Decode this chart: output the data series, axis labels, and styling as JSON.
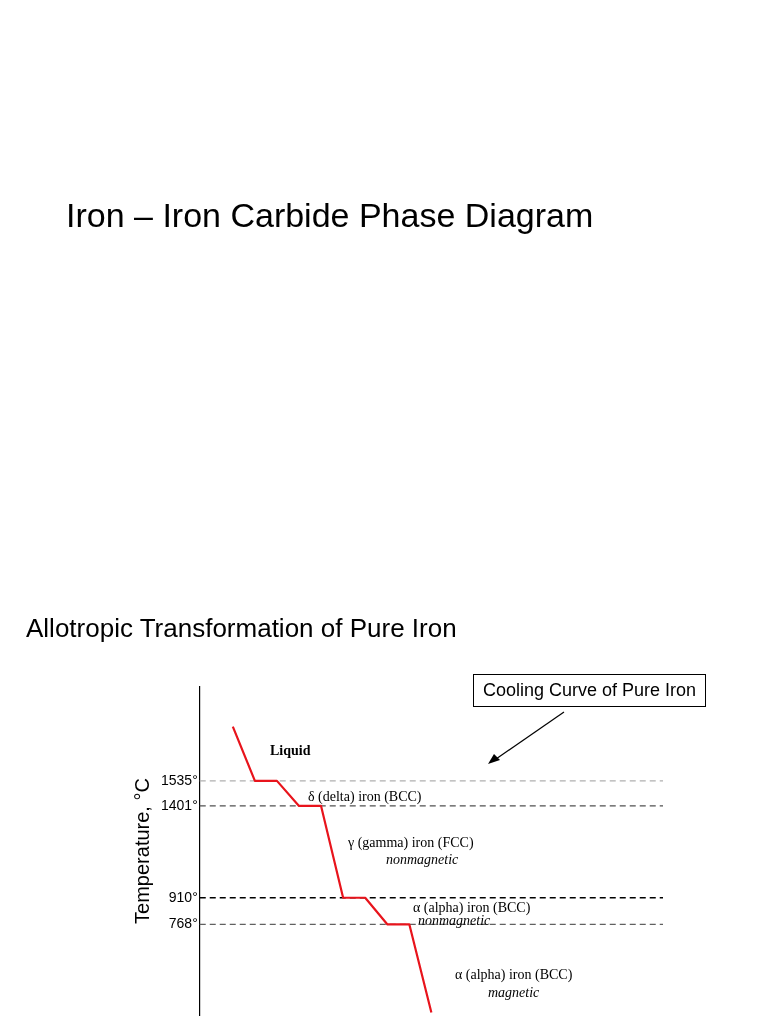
{
  "chart_data": {
    "type": "line",
    "title": "Iron – Iron Carbide Phase Diagram",
    "subtitle": "Allotropic Transformation of Pure Iron",
    "ylabel": "Temperature, °C",
    "categories": [
      null,
      null,
      null,
      null,
      null,
      null,
      null,
      null,
      null,
      null,
      null,
      null,
      null,
      null,
      null,
      null,
      null,
      null,
      null,
      null,
      null
    ],
    "series": [
      {
        "color": "#e8141c",
        "values": [
          null,
          1825,
          1535,
          1535,
          1401,
          1401,
          910,
          910,
          768,
          768,
          297,
          null,
          null,
          null,
          null,
          null,
          null,
          null,
          null,
          null,
          null
        ]
      }
    ],
    "ylim": [
      280,
      2040
    ],
    "yticks": [
      {
        "value": 768,
        "label": "768°"
      },
      {
        "value": 910,
        "label": "910°"
      },
      {
        "value": 1401,
        "label": "1401°"
      },
      {
        "value": 1535,
        "label": "1535°"
      }
    ],
    "tick_labels": "y",
    "marker": "none",
    "line_style": "solid",
    "legend": false,
    "ref_lines": [
      {
        "axis": "y",
        "value": 1535,
        "color": "#b0b0b0",
        "line_style": "dashed"
      },
      {
        "axis": "y",
        "value": 1401,
        "color": "#505050",
        "line_style": "dashed"
      },
      {
        "axis": "y",
        "value": 910,
        "color": "#000000",
        "line_style": "dashed"
      },
      {
        "axis": "y",
        "value": 768,
        "color": "#606060",
        "line_style": "dashed"
      }
    ],
    "annotations": [
      "Cooling Curve of Pure Iron",
      "Liquid",
      "δ (delta) iron (BCC)",
      "γ (gamma) iron (FCC)",
      "nonmagnetic",
      "α (alpha) iron (BCC)",
      "nonmagnetic",
      "α (alpha) iron (BCC)",
      "magnetic"
    ]
  }
}
